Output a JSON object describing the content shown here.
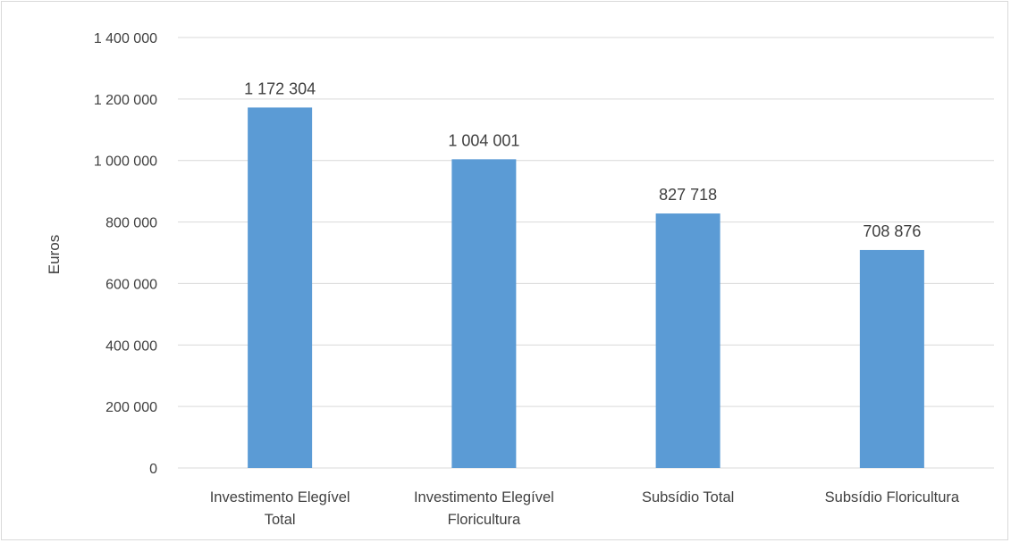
{
  "chart_data": {
    "type": "bar",
    "title": "",
    "xlabel": "",
    "ylabel": "Euros",
    "ylim": [
      0,
      1400000
    ],
    "yticks": [
      0,
      200000,
      400000,
      600000,
      800000,
      1000000,
      1200000,
      1400000
    ],
    "ytick_labels": [
      "0",
      "200 000",
      "400 000",
      "600 000",
      "800 000",
      "1 000 000",
      "1 200 000",
      "1 400 000"
    ],
    "categories": [
      [
        "Investimento Elegível",
        "Total"
      ],
      [
        "Investimento Elegível",
        "Floricultura"
      ],
      [
        "Subsídio Total"
      ],
      [
        "Subsídio Floricultura"
      ]
    ],
    "values": [
      1172304,
      1004001,
      827718,
      708876
    ],
    "data_labels": [
      "1 172 304",
      "1 004 001",
      "827 718",
      "708 876"
    ],
    "grid": "horizontal",
    "legend": "none",
    "colors": {
      "bar": "#5b9bd5",
      "grid": "#d9d9d9",
      "text": "#404040"
    }
  }
}
